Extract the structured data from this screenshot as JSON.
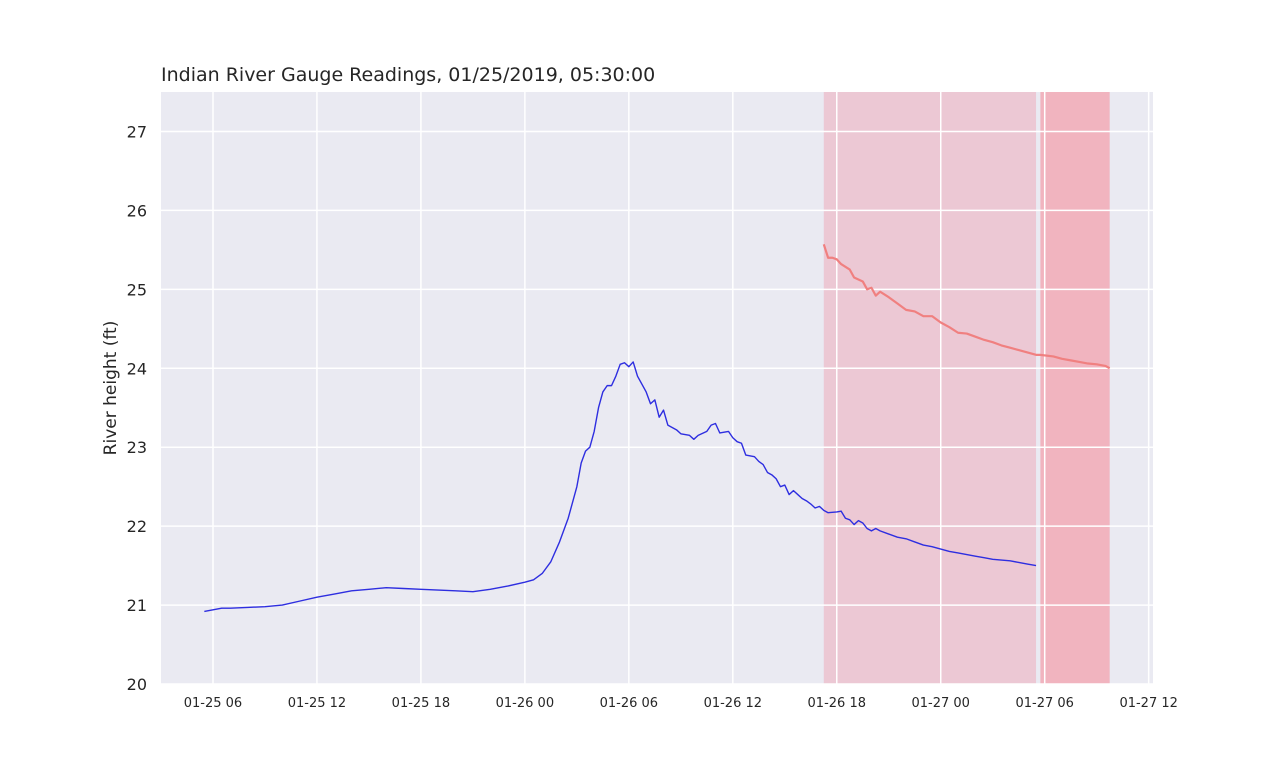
{
  "chart_data": {
    "type": "line",
    "title": "Indian River Gauge Readings, 01/25/2019, 05:30:00",
    "xlabel": "",
    "ylabel": "River height (ft)",
    "x_ticks": [
      {
        "t": "2019-01-25T06:00",
        "label": "01-25 06"
      },
      {
        "t": "2019-01-25T12:00",
        "label": "01-25 12"
      },
      {
        "t": "2019-01-25T18:00",
        "label": "01-25 18"
      },
      {
        "t": "2019-01-26T00:00",
        "label": "01-26 00"
      },
      {
        "t": "2019-01-26T06:00",
        "label": "01-26 06"
      },
      {
        "t": "2019-01-26T12:00",
        "label": "01-26 12"
      },
      {
        "t": "2019-01-26T18:00",
        "label": "01-26 18"
      },
      {
        "t": "2019-01-27T00:00",
        "label": "01-27 00"
      },
      {
        "t": "2019-01-27T06:00",
        "label": "01-27 06"
      },
      {
        "t": "2019-01-27T12:00",
        "label": "01-27 12"
      }
    ],
    "y_ticks": [
      "20",
      "21",
      "22",
      "23",
      "24",
      "25",
      "26",
      "27"
    ],
    "xlim": [
      "2019-01-25T03:00",
      "2019-01-27T12:15"
    ],
    "ylim": [
      20,
      27.5
    ],
    "grid": true,
    "colors": {
      "background": "#eaeaf2",
      "grid": "#ffffff",
      "observed": "#2e2ee0",
      "forecast": "#f08080",
      "band_light": "#ecc8d4",
      "band_dark": "#f1b4bf"
    },
    "series": [
      {
        "kind": "observed",
        "points": [
          [
            "2019-01-25T05:30",
            20.92
          ],
          [
            "2019-01-25T06:30",
            20.96
          ],
          [
            "2019-01-25T07:00",
            20.96
          ],
          [
            "2019-01-25T08:00",
            20.97
          ],
          [
            "2019-01-25T09:00",
            20.98
          ],
          [
            "2019-01-25T10:00",
            21.0
          ],
          [
            "2019-01-25T11:00",
            21.05
          ],
          [
            "2019-01-25T12:00",
            21.1
          ],
          [
            "2019-01-25T13:00",
            21.14
          ],
          [
            "2019-01-25T14:00",
            21.18
          ],
          [
            "2019-01-25T15:00",
            21.2
          ],
          [
            "2019-01-25T16:00",
            21.22
          ],
          [
            "2019-01-25T17:00",
            21.21
          ],
          [
            "2019-01-25T18:00",
            21.2
          ],
          [
            "2019-01-25T19:00",
            21.19
          ],
          [
            "2019-01-25T20:00",
            21.18
          ],
          [
            "2019-01-25T21:00",
            21.17
          ],
          [
            "2019-01-25T22:00",
            21.2
          ],
          [
            "2019-01-25T23:00",
            21.24
          ],
          [
            "2019-01-26T00:00",
            21.29
          ],
          [
            "2019-01-26T00:30",
            21.32
          ],
          [
            "2019-01-26T01:00",
            21.4
          ],
          [
            "2019-01-26T01:30",
            21.55
          ],
          [
            "2019-01-26T02:00",
            21.8
          ],
          [
            "2019-01-26T02:30",
            22.1
          ],
          [
            "2019-01-26T03:00",
            22.5
          ],
          [
            "2019-01-26T03:15",
            22.8
          ],
          [
            "2019-01-26T03:30",
            22.95
          ],
          [
            "2019-01-26T03:45",
            23.0
          ],
          [
            "2019-01-26T04:00",
            23.2
          ],
          [
            "2019-01-26T04:15",
            23.5
          ],
          [
            "2019-01-26T04:30",
            23.7
          ],
          [
            "2019-01-26T04:45",
            23.78
          ],
          [
            "2019-01-26T05:00",
            23.78
          ],
          [
            "2019-01-26T05:15",
            23.9
          ],
          [
            "2019-01-26T05:30",
            24.05
          ],
          [
            "2019-01-26T05:45",
            24.07
          ],
          [
            "2019-01-26T06:00",
            24.02
          ],
          [
            "2019-01-26T06:15",
            24.08
          ],
          [
            "2019-01-26T06:30",
            23.9
          ],
          [
            "2019-01-26T06:45",
            23.8
          ],
          [
            "2019-01-26T07:00",
            23.7
          ],
          [
            "2019-01-26T07:15",
            23.55
          ],
          [
            "2019-01-26T07:30",
            23.6
          ],
          [
            "2019-01-26T07:45",
            23.38
          ],
          [
            "2019-01-26T08:00",
            23.47
          ],
          [
            "2019-01-26T08:15",
            23.28
          ],
          [
            "2019-01-26T08:45",
            23.22
          ],
          [
            "2019-01-26T09:00",
            23.17
          ],
          [
            "2019-01-26T09:30",
            23.15
          ],
          [
            "2019-01-26T09:45",
            23.1
          ],
          [
            "2019-01-26T10:00",
            23.15
          ],
          [
            "2019-01-26T10:30",
            23.2
          ],
          [
            "2019-01-26T10:45",
            23.28
          ],
          [
            "2019-01-26T11:00",
            23.3
          ],
          [
            "2019-01-26T11:15",
            23.18
          ],
          [
            "2019-01-26T11:45",
            23.2
          ],
          [
            "2019-01-26T12:00",
            23.12
          ],
          [
            "2019-01-26T12:15",
            23.07
          ],
          [
            "2019-01-26T12:30",
            23.05
          ],
          [
            "2019-01-26T12:45",
            22.9
          ],
          [
            "2019-01-26T13:15",
            22.88
          ],
          [
            "2019-01-26T13:30",
            22.82
          ],
          [
            "2019-01-26T13:45",
            22.78
          ],
          [
            "2019-01-26T14:00",
            22.68
          ],
          [
            "2019-01-26T14:15",
            22.65
          ],
          [
            "2019-01-26T14:30",
            22.6
          ],
          [
            "2019-01-26T14:45",
            22.5
          ],
          [
            "2019-01-26T15:00",
            22.52
          ],
          [
            "2019-01-26T15:15",
            22.4
          ],
          [
            "2019-01-26T15:30",
            22.45
          ],
          [
            "2019-01-26T15:45",
            22.4
          ],
          [
            "2019-01-26T16:00",
            22.35
          ],
          [
            "2019-01-26T16:15",
            22.32
          ],
          [
            "2019-01-26T16:30",
            22.28
          ],
          [
            "2019-01-26T16:45",
            22.23
          ],
          [
            "2019-01-26T17:00",
            22.25
          ],
          [
            "2019-01-26T17:15",
            22.2
          ],
          [
            "2019-01-26T17:30",
            22.17
          ],
          [
            "2019-01-26T18:00",
            22.18
          ],
          [
            "2019-01-26T18:15",
            22.19
          ],
          [
            "2019-01-26T18:30",
            22.1
          ],
          [
            "2019-01-26T18:45",
            22.08
          ],
          [
            "2019-01-26T19:00",
            22.02
          ],
          [
            "2019-01-26T19:15",
            22.07
          ],
          [
            "2019-01-26T19:30",
            22.04
          ],
          [
            "2019-01-26T19:45",
            21.97
          ],
          [
            "2019-01-26T20:00",
            21.94
          ],
          [
            "2019-01-26T20:15",
            21.97
          ],
          [
            "2019-01-26T20:30",
            21.94
          ],
          [
            "2019-01-26T21:00",
            21.9
          ],
          [
            "2019-01-26T21:30",
            21.86
          ],
          [
            "2019-01-26T22:00",
            21.84
          ],
          [
            "2019-01-26T22:30",
            21.8
          ],
          [
            "2019-01-26T23:00",
            21.76
          ],
          [
            "2019-01-26T23:30",
            21.74
          ],
          [
            "2019-01-27T00:00",
            21.71
          ],
          [
            "2019-01-27T00:30",
            21.68
          ],
          [
            "2019-01-27T01:00",
            21.66
          ],
          [
            "2019-01-27T01:30",
            21.64
          ],
          [
            "2019-01-27T02:00",
            21.62
          ],
          [
            "2019-01-27T02:30",
            21.6
          ],
          [
            "2019-01-27T03:00",
            21.58
          ],
          [
            "2019-01-27T03:30",
            21.57
          ],
          [
            "2019-01-27T04:00",
            21.56
          ],
          [
            "2019-01-27T04:30",
            21.54
          ],
          [
            "2019-01-27T05:00",
            21.52
          ],
          [
            "2019-01-27T05:30",
            21.5
          ]
        ]
      },
      {
        "kind": "forecast",
        "points": [
          [
            "2019-01-26T17:15",
            25.57
          ],
          [
            "2019-01-26T17:30",
            25.4
          ],
          [
            "2019-01-26T17:45",
            25.4
          ],
          [
            "2019-01-26T18:00",
            25.38
          ],
          [
            "2019-01-26T18:15",
            25.32
          ],
          [
            "2019-01-26T18:45",
            25.25
          ],
          [
            "2019-01-26T19:00",
            25.15
          ],
          [
            "2019-01-26T19:30",
            25.1
          ],
          [
            "2019-01-26T19:45",
            25.0
          ],
          [
            "2019-01-26T20:00",
            25.02
          ],
          [
            "2019-01-26T20:15",
            24.92
          ],
          [
            "2019-01-26T20:30",
            24.97
          ],
          [
            "2019-01-26T21:00",
            24.9
          ],
          [
            "2019-01-26T21:30",
            24.82
          ],
          [
            "2019-01-26T22:00",
            24.74
          ],
          [
            "2019-01-26T22:30",
            24.72
          ],
          [
            "2019-01-26T23:00",
            24.66
          ],
          [
            "2019-01-26T23:30",
            24.66
          ],
          [
            "2019-01-27T00:00",
            24.58
          ],
          [
            "2019-01-27T00:30",
            24.52
          ],
          [
            "2019-01-27T01:00",
            24.45
          ],
          [
            "2019-01-27T01:30",
            24.44
          ],
          [
            "2019-01-27T02:00",
            24.4
          ],
          [
            "2019-01-27T02:30",
            24.36
          ],
          [
            "2019-01-27T03:00",
            24.33
          ],
          [
            "2019-01-27T03:30",
            24.29
          ],
          [
            "2019-01-27T04:00",
            24.26
          ],
          [
            "2019-01-27T04:30",
            24.23
          ],
          [
            "2019-01-27T05:00",
            24.2
          ],
          [
            "2019-01-27T05:30",
            24.17
          ],
          [
            "2019-01-27T05:45",
            24.17
          ],
          [
            "2019-01-27T06:30",
            24.15
          ],
          [
            "2019-01-27T07:00",
            24.12
          ],
          [
            "2019-01-27T07:30",
            24.1
          ],
          [
            "2019-01-27T08:00",
            24.08
          ],
          [
            "2019-01-27T08:30",
            24.06
          ],
          [
            "2019-01-27T09:00",
            24.05
          ],
          [
            "2019-01-27T09:30",
            24.03
          ],
          [
            "2019-01-27T09:45",
            24.0
          ]
        ]
      }
    ],
    "bands": [
      {
        "x0": "2019-01-26T17:15",
        "x1": "2019-01-27T05:30",
        "style": "light"
      },
      {
        "x0": "2019-01-27T05:45",
        "x1": "2019-01-27T09:45",
        "style": "dark"
      }
    ]
  }
}
